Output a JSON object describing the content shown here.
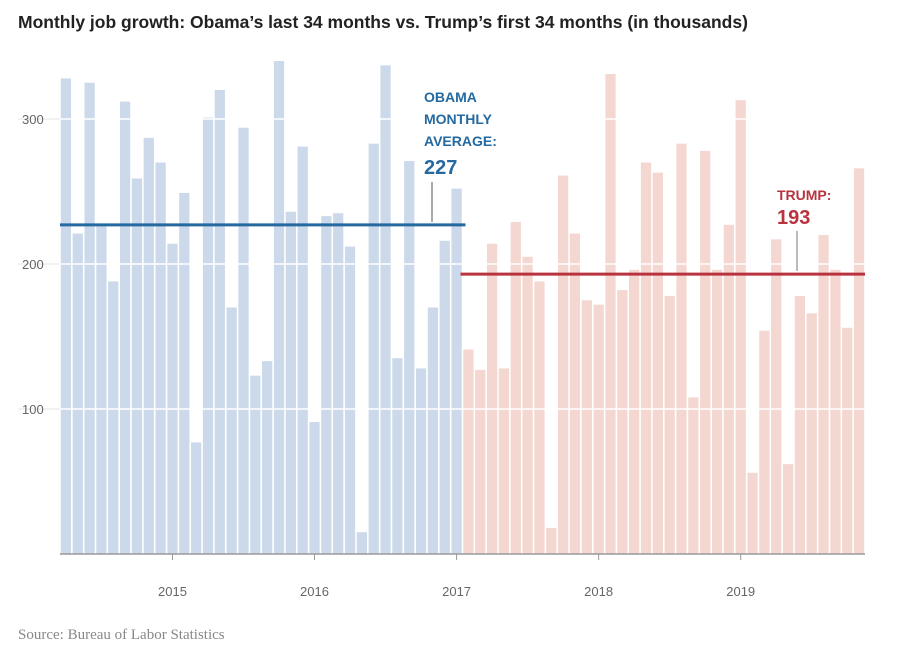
{
  "chart_data": {
    "type": "bar",
    "title": "Monthly job growth: Obama’s last 34 months vs. Trump’s first 34 months (in thousands)",
    "xlabel": "",
    "ylabel": "",
    "ylim": [
      0,
      340
    ],
    "yticks": [
      100,
      200,
      300
    ],
    "xticks": [
      "2015",
      "2016",
      "2017",
      "2018",
      "2019"
    ],
    "grid": true,
    "series": [
      {
        "name": "Obama",
        "color": "#cbd9ea",
        "values": [
          328,
          221,
          325,
          226,
          188,
          312,
          259,
          287,
          270,
          214,
          249,
          77,
          301,
          320,
          170,
          294,
          123,
          133,
          340,
          236,
          281,
          91,
          233,
          235,
          212,
          15,
          283,
          337,
          135,
          271,
          128,
          170,
          216,
          252
        ]
      },
      {
        "name": "Trump",
        "color": "#f4d7d1",
        "values": [
          141,
          127,
          214,
          128,
          229,
          205,
          188,
          18,
          261,
          221,
          175,
          172,
          331,
          182,
          196,
          270,
          263,
          178,
          283,
          108,
          278,
          196,
          227,
          313,
          56,
          154,
          217,
          62,
          178,
          166,
          220,
          196,
          156,
          266
        ]
      }
    ],
    "annotations": {
      "obama": {
        "lines": [
          "OBAMA",
          "MONTHLY",
          "AVERAGE:"
        ],
        "value": "227",
        "average": 227,
        "color": "#2469a0"
      },
      "trump": {
        "lines": [
          "TRUMP:"
        ],
        "value": "193",
        "average": 193,
        "color": "#b8333e"
      }
    }
  },
  "source": "Source: Bureau of Labor Statistics"
}
